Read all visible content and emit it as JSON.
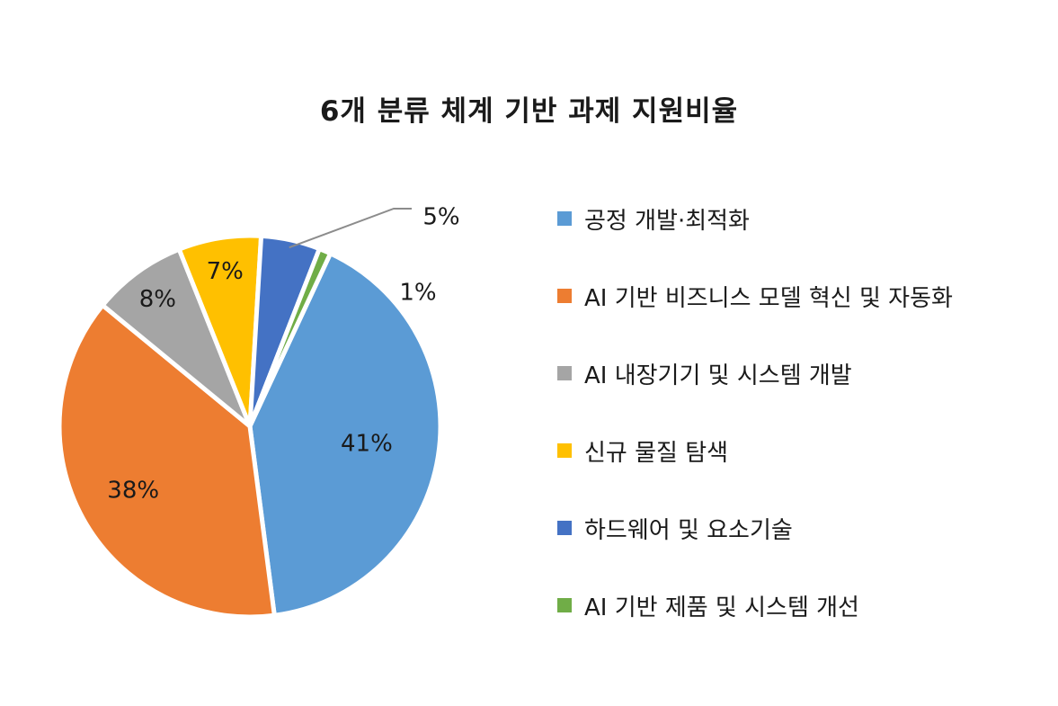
{
  "chart_data": {
    "type": "pie",
    "title": "6개 분류 체계 기반 과제 지원비율",
    "categories": [
      "공정 개발·최적화",
      "AI 기반 비즈니스 모델 혁신 및 자동화",
      "AI 내장기기 및 시스템 개발",
      "신규 물질 탐색",
      "하드웨어 및 요소기술",
      "AI 기반 제품 및 시스템 개선"
    ],
    "values": [
      41,
      38,
      8,
      7,
      5,
      1
    ],
    "labels": [
      "41%",
      "38%",
      "8%",
      "7%",
      "5%",
      "1%"
    ],
    "colors": [
      "#5B9BD5",
      "#ED7D31",
      "#A5A5A5",
      "#FFC000",
      "#4472C4",
      "#70AD47"
    ],
    "legend_position": "right"
  }
}
